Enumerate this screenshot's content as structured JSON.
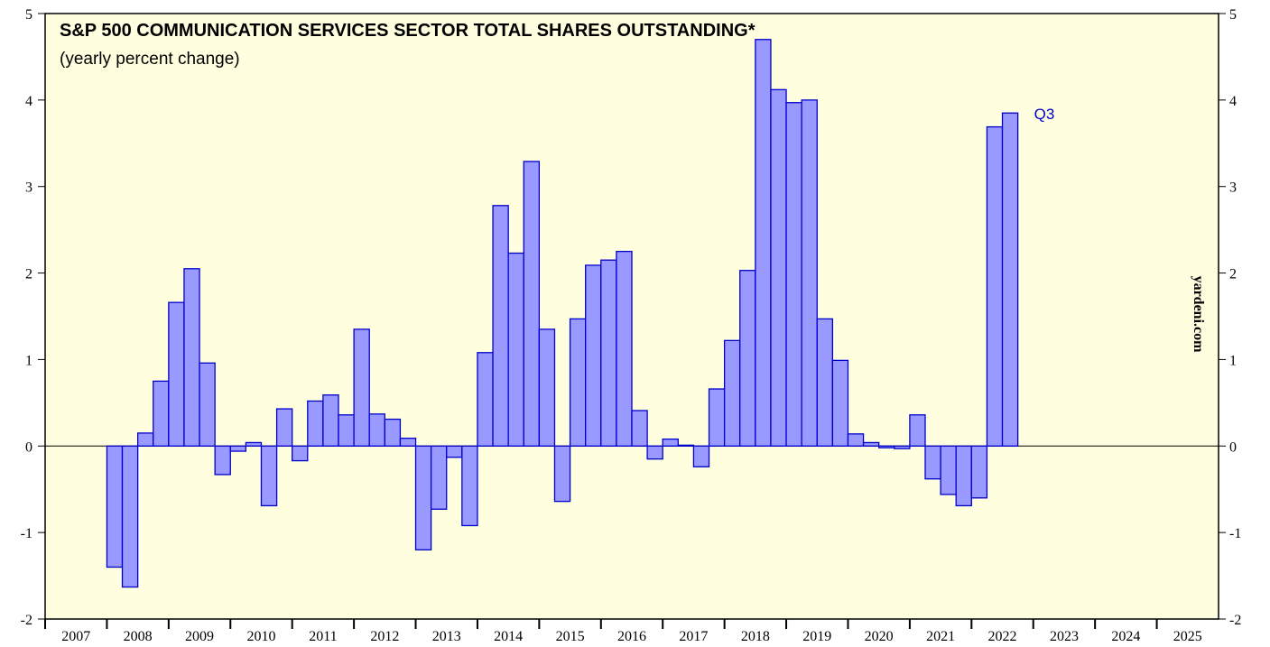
{
  "chart_data": {
    "type": "bar",
    "title": "S&P 500 COMMUNICATION SERVICES SECTOR TOTAL SHARES OUTSTANDING*",
    "subtitle": "(yearly percent change)",
    "watermark": "yardeni.com",
    "annotation": "Q3",
    "color": "#9999ff",
    "edge_color": "#0000cc",
    "bar_width": 0.25,
    "x": [
      2008,
      2008.25,
      2008.5,
      2008.75,
      2009,
      2009.25,
      2009.5,
      2009.75,
      2010,
      2010.25,
      2010.5,
      2010.75,
      2011,
      2011.25,
      2011.5,
      2011.75,
      2012,
      2012.25,
      2012.5,
      2012.75,
      2013,
      2013.25,
      2013.5,
      2013.75,
      2014,
      2014.25,
      2014.5,
      2014.75,
      2015,
      2015.25,
      2015.5,
      2015.75,
      2016,
      2016.25,
      2016.5,
      2016.75,
      2017,
      2017.25,
      2017.5,
      2017.75,
      2018,
      2018.25,
      2018.5,
      2018.75,
      2019,
      2019.25,
      2019.5,
      2019.75,
      2020,
      2020.25,
      2020.5,
      2020.75,
      2021,
      2021.25,
      2021.5,
      2021.75,
      2022,
      2022.25,
      2022.5
    ],
    "values": [
      -1.4,
      -1.63,
      0.15,
      0.75,
      1.66,
      2.05,
      0.96,
      -0.33,
      -0.06,
      0.04,
      -0.69,
      0.43,
      -0.17,
      0.52,
      0.59,
      0.36,
      1.35,
      0.37,
      0.31,
      0.09,
      -1.2,
      -0.73,
      -0.13,
      -0.92,
      1.08,
      2.78,
      2.23,
      3.29,
      1.35,
      -0.64,
      1.47,
      2.09,
      2.15,
      2.25,
      0.41,
      -0.15,
      0.08,
      0.01,
      -0.24,
      0.66,
      1.22,
      2.03,
      4.7,
      4.12,
      3.97,
      4.0,
      1.47,
      0.99,
      0.14,
      0.04,
      -0.02,
      -0.03,
      0.36,
      -0.38,
      -0.56,
      -0.69,
      -0.6,
      3.69,
      3.85
    ],
    "xlim": [
      2007,
      2026
    ],
    "xticks": [
      2007,
      2008,
      2009,
      2010,
      2011,
      2012,
      2013,
      2014,
      2015,
      2016,
      2017,
      2018,
      2019,
      2020,
      2021,
      2022,
      2023,
      2024,
      2025
    ],
    "ylim": [
      -2,
      5
    ],
    "yticks": [
      -2,
      -1,
      0,
      1,
      2,
      3,
      4,
      5
    ],
    "y2lim": [
      -2,
      5
    ],
    "y2ticks": [
      -2,
      -1,
      0,
      1,
      2,
      3,
      4,
      5
    ]
  }
}
